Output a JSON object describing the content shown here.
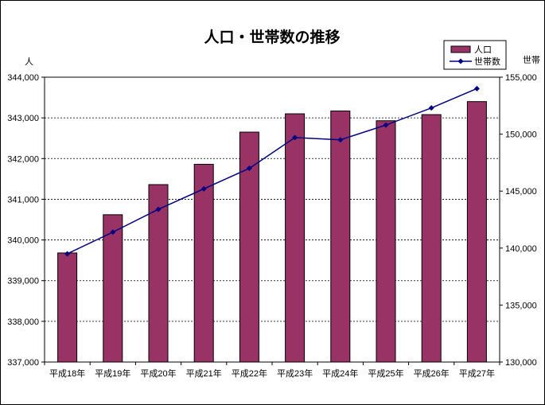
{
  "chart_data": {
    "type": "bar",
    "title": "人口・世帯数の推移",
    "categories": [
      "平成18年",
      "平成19年",
      "平成20年",
      "平成21年",
      "平成22年",
      "平成23年",
      "平成24年",
      "平成25年",
      "平成26年",
      "平成27年"
    ],
    "y_left": {
      "unit": "人",
      "min": 337000,
      "max": 344000,
      "step": 1000,
      "ticks": [
        "337,000",
        "338,000",
        "339,000",
        "340,000",
        "341,000",
        "342,000",
        "343,000",
        "344,000"
      ]
    },
    "y_right": {
      "unit": "世帯",
      "min": 130000,
      "max": 155000,
      "step": 5000,
      "ticks": [
        "130,000",
        "135,000",
        "140,000",
        "145,000",
        "150,000",
        "155,000"
      ]
    },
    "series": [
      {
        "name": "人口",
        "type": "bar",
        "axis": "left",
        "color": "#993366",
        "values": [
          339680,
          340620,
          341360,
          341860,
          342650,
          343100,
          343170,
          342930,
          343080,
          343400
        ]
      },
      {
        "name": "世帯数",
        "type": "line",
        "axis": "right",
        "color": "#000080",
        "values": [
          139500,
          141400,
          143400,
          145200,
          147000,
          149700,
          149500,
          150800,
          152300,
          154000
        ]
      }
    ],
    "grid": true,
    "legend": "top-right"
  }
}
